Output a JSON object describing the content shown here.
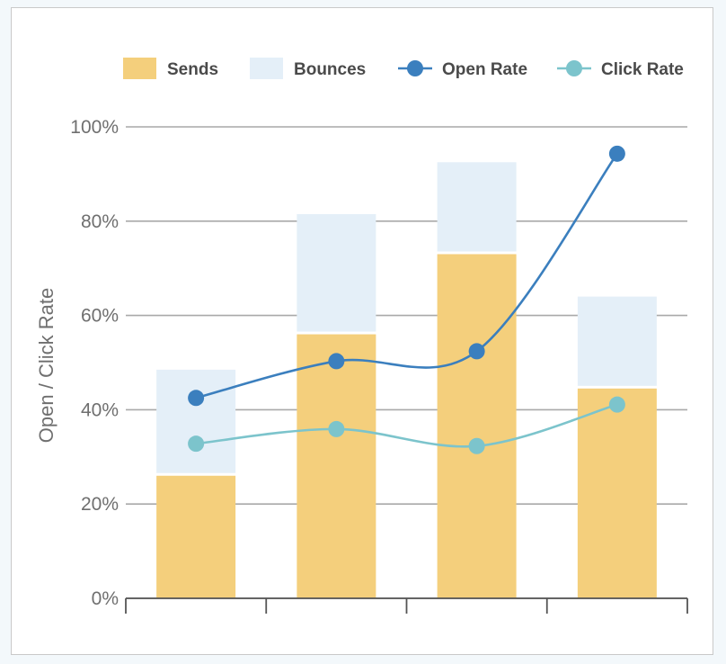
{
  "chart_data": {
    "type": "bar",
    "categories": [
      "",
      "",
      "",
      ""
    ],
    "ylabel": "Open / Click Rate",
    "ylim": [
      0,
      100
    ],
    "yticks": [
      "0%",
      "20%",
      "40%",
      "60%",
      "80%",
      "100%"
    ],
    "grid": true,
    "legend_position": "top",
    "stacked": true,
    "series": [
      {
        "name": "Sends",
        "kind": "bar",
        "color": "#f4cf7c",
        "values": [
          26,
          56,
          73,
          44.5
        ]
      },
      {
        "name": "Bounces",
        "kind": "bar",
        "color": "#e4eff8",
        "values": [
          22.5,
          25.5,
          19.5,
          19.5
        ]
      },
      {
        "name": "Open Rate",
        "kind": "line",
        "color": "#3b7fbe",
        "values": [
          42.5,
          50.3,
          52.4,
          94.3
        ]
      },
      {
        "name": "Click Rate",
        "kind": "line",
        "color": "#7cc4cc",
        "values": [
          32.8,
          35.9,
          32.3,
          41.1
        ]
      }
    ]
  }
}
